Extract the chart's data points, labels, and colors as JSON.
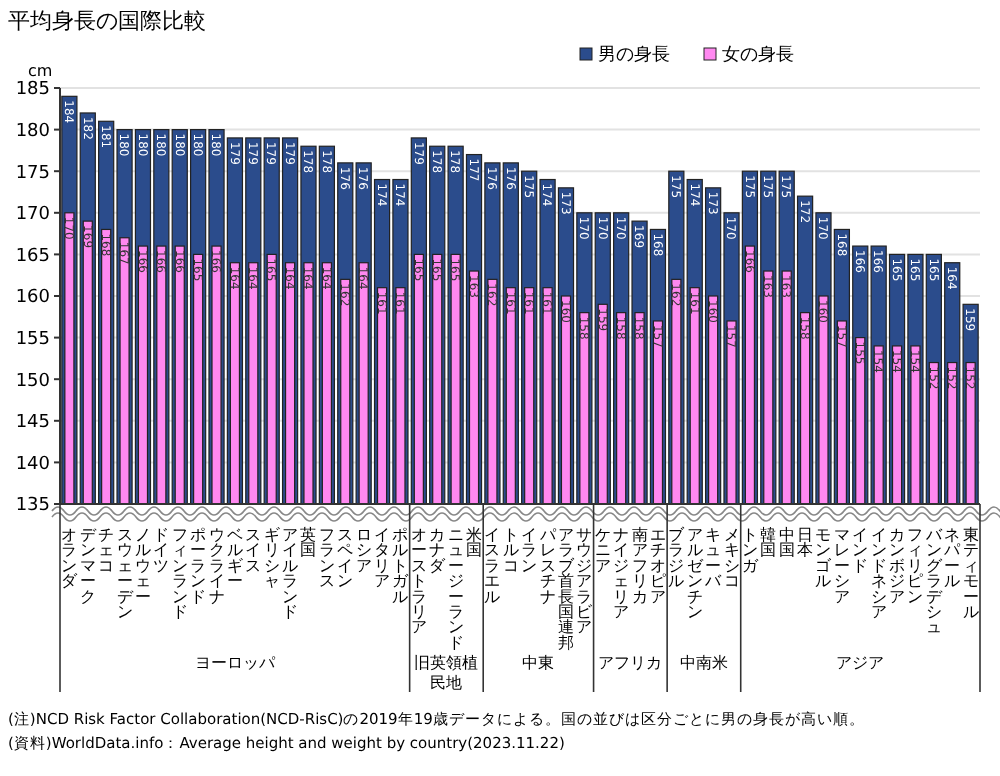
{
  "chart_data": {
    "type": "bar",
    "title": "平均身長の国際比較",
    "ylabel": "cm",
    "categories": [
      "オランダ",
      "デンマーク",
      "チェコ",
      "スウェーデン",
      "ノルウェー",
      "ドイツ",
      "フィンランド",
      "ポーランド",
      "ウクライナ",
      "ベルギー",
      "スイス",
      "ギリシャ",
      "アイルランド",
      "英国",
      "フランス",
      "スペイン",
      "ロシア",
      "イタリア",
      "ポルトガル",
      "オーストラリア",
      "カナダ",
      "ニュージーランド",
      "米国",
      "イスラエル",
      "トルコ",
      "イラン",
      "パレスチナ",
      "アラブ首長国連邦",
      "サウジアラビア",
      "ケニア",
      "ナイジェリア",
      "南アフリカ",
      "エチオピア",
      "ブラジル",
      "アルゼンチン",
      "キューバ",
      "メキシコ",
      "トンガ",
      "韓国",
      "中国",
      "日本",
      "モンゴル",
      "マレーシア",
      "インド",
      "インドネシア",
      "カンボジア",
      "フィリピン",
      "バングラデシュ",
      "ネパール",
      "東ティモール"
    ],
    "series": [
      {
        "name": "男の身長",
        "color": "#2b4c8c",
        "values": [
          184,
          182,
          181,
          180,
          180,
          180,
          180,
          180,
          180,
          179,
          179,
          179,
          179,
          178,
          178,
          176,
          176,
          174,
          174,
          179,
          178,
          178,
          177,
          176,
          176,
          175,
          174,
          173,
          170,
          170,
          170,
          169,
          168,
          175,
          174,
          173,
          170,
          175,
          175,
          175,
          172,
          170,
          168,
          166,
          166,
          165,
          165,
          165,
          164,
          159
        ]
      },
      {
        "name": "女の身長",
        "color": "#ff88f0",
        "values": [
          170,
          169,
          168,
          167,
          166,
          166,
          166,
          165,
          166,
          164,
          164,
          165,
          164,
          164,
          164,
          162,
          164,
          161,
          161,
          165,
          165,
          165,
          163,
          162,
          161,
          161,
          161,
          160,
          158,
          159,
          158,
          158,
          157,
          162,
          161,
          160,
          157,
          166,
          163,
          163,
          158,
          160,
          157,
          155,
          154,
          154,
          154,
          152,
          152,
          152
        ]
      }
    ],
    "ylim": [
      135,
      185
    ],
    "yticks": [
      135,
      140,
      145,
      150,
      155,
      160,
      165,
      170,
      175,
      180,
      185
    ],
    "grid": "y",
    "legend": "top",
    "data_labels": true,
    "annotations": [
      "ヨーロッパ",
      "旧英領植民地",
      "中東",
      "アフリカ",
      "中南米",
      "アジア",
      "(注)NCD Risk Factor Collaboration(NCD-RisC)の2019年19歳データによる。国の並びは区分ごとに男の身長が高い順。",
      "(資料)WorldData.info：Average height and weight by country(2023.11.22)"
    ]
  }
}
